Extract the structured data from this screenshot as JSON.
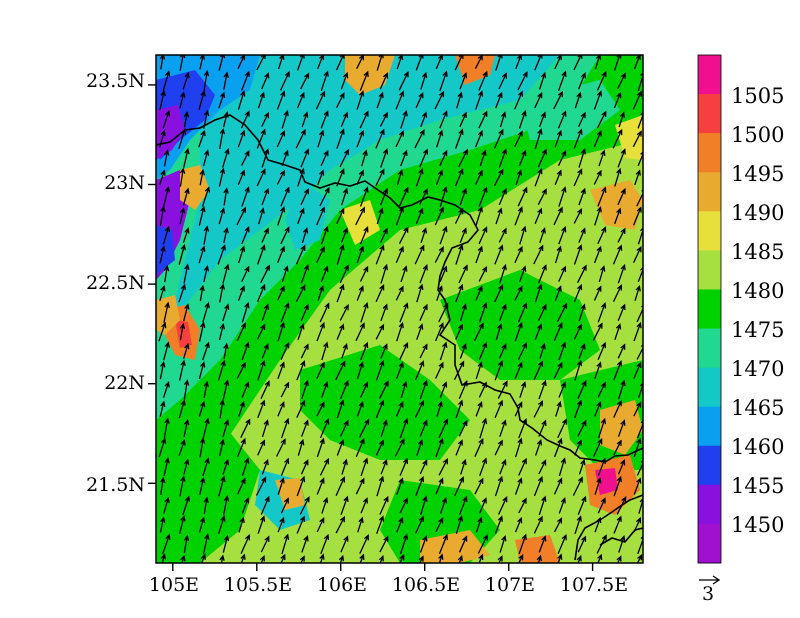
{
  "map": {
    "x_ticks": [
      "105E",
      "105.5E",
      "106E",
      "106.5E",
      "107E",
      "107.5E"
    ],
    "y_ticks": [
      "23.5N",
      "23N",
      "22.5N",
      "22N",
      "21.5N"
    ],
    "lon_range": [
      104.9,
      107.8
    ],
    "lat_range": [
      21.1,
      23.65
    ],
    "lon_tick_values": [
      105.0,
      105.5,
      106.0,
      106.5,
      107.0,
      107.5
    ],
    "lat_tick_values": [
      23.5,
      23.0,
      22.5,
      22.0,
      21.5
    ],
    "wind_direction": "southwest to northeast",
    "field": "contour-filled value 1445–1510"
  },
  "colorbar": {
    "labels": [
      "1505",
      "1500",
      "1495",
      "1490",
      "1485",
      "1480",
      "1475",
      "1470",
      "1465",
      "1460",
      "1455",
      "1450"
    ],
    "colors": [
      "#f0108f",
      "#f64040",
      "#f17f27",
      "#e8ab2f",
      "#e8e03a",
      "#a6e040",
      "#00d200",
      "#20d890",
      "#14c8c8",
      "#0aa0f0",
      "#2040f0",
      "#8a10e0",
      "#a010d0"
    ]
  },
  "vector_reference": {
    "label": "3"
  }
}
